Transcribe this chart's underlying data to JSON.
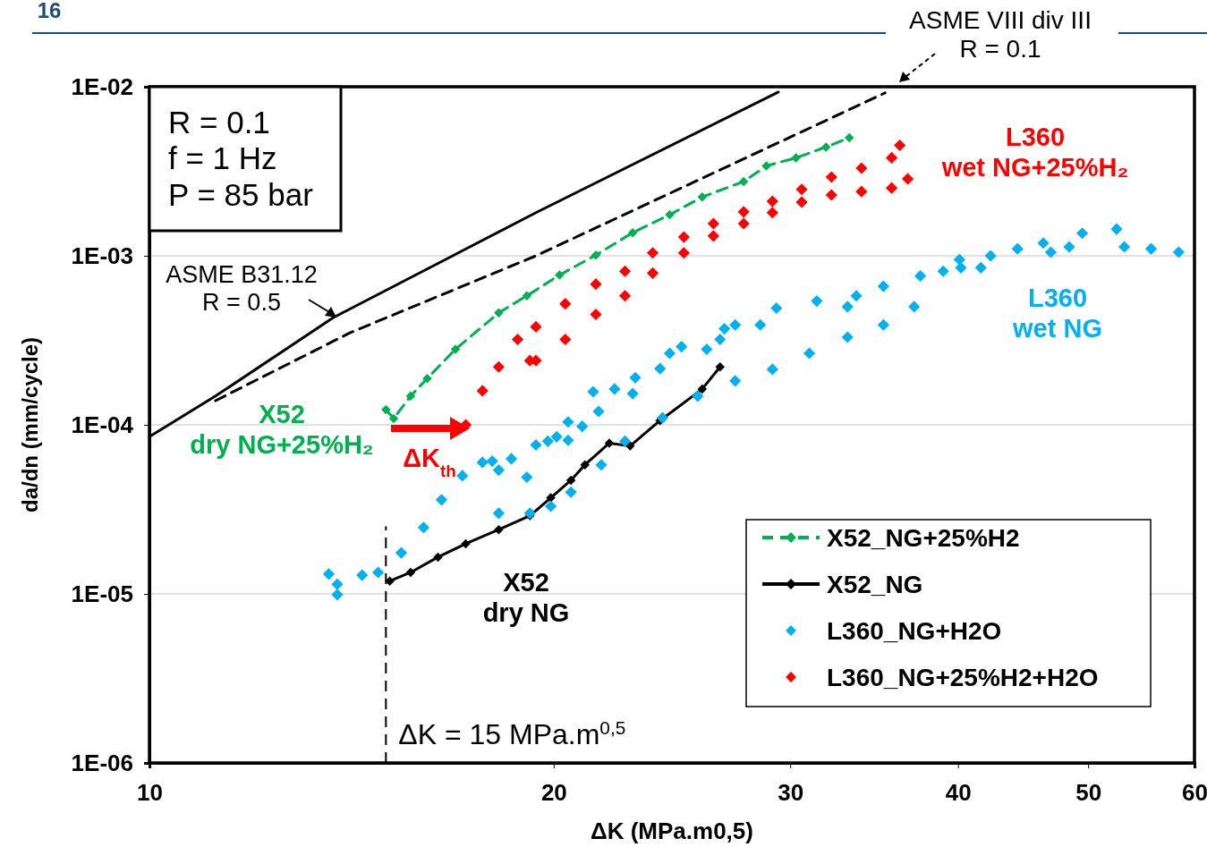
{
  "chart_data": {
    "type": "scatter",
    "xlabel": "ΔK (MPa.m0,5)",
    "ylabel": "da/dn (mm/cycle)",
    "log": "xy",
    "xlim": [
      10,
      60
    ],
    "ylim": [
      1e-06,
      0.01
    ],
    "xticks": [
      10,
      20,
      30,
      40,
      50,
      60
    ],
    "yticks": [
      {
        "value": 1e-06,
        "label": "1E-06"
      },
      {
        "value": 1e-05,
        "label": "1E-05"
      },
      {
        "value": 0.0001,
        "label": "1E-04"
      },
      {
        "value": 0.001,
        "label": "1E-03"
      },
      {
        "value": 0.01,
        "label": "1E-02"
      }
    ],
    "grid": "y",
    "legend": "bottom right",
    "marker": "diamond",
    "series": [
      {
        "type": "line",
        "color": "#000000",
        "marker": "none",
        "line_style": "solid",
        "x": [
          10,
          11.2,
          13.7,
          19.4,
          29.4
        ],
        "values": [
          8.5e-05,
          0.000148,
          0.00043,
          0.0018,
          0.0093
        ]
      },
      {
        "type": "line",
        "color": "#000000",
        "marker": "none",
        "line_style": "dashed",
        "x": [
          11.2,
          14.1,
          19.4,
          35.3
        ],
        "values": [
          0.000139,
          0.00035,
          0.001,
          0.0092
        ]
      },
      {
        "name": "X52_NG+25%H2",
        "type": "line",
        "color": "#00b050",
        "line_style": "dashed",
        "x": [
          15.0,
          15.2,
          15.65,
          16.1,
          16.9,
          18.2,
          19.1,
          20.2,
          21.5,
          22.9,
          24.4,
          25.8,
          27.7,
          28.8,
          30.3,
          31.9,
          33.2
        ],
        "values": [
          0.000123,
          0.000109,
          0.000148,
          0.000188,
          0.00028,
          0.00046,
          0.00058,
          0.00077,
          0.00101,
          0.00137,
          0.00175,
          0.00223,
          0.00275,
          0.0034,
          0.0038,
          0.0044,
          0.005
        ]
      },
      {
        "name": "X52_NG",
        "type": "line",
        "color": "#000000",
        "line_style": "solid",
        "x": [
          15.1,
          15.65,
          16.4,
          17.2,
          18.2,
          19.2,
          19.9,
          20.6,
          21.1,
          22.0,
          22.8,
          24.0,
          25.8,
          26.6
        ],
        "values": [
          1.19e-05,
          1.34e-05,
          1.65e-05,
          1.98e-05,
          2.4e-05,
          2.9e-05,
          3.7e-05,
          4.7e-05,
          5.8e-05,
          7.8e-05,
          7.5e-05,
          0.000106,
          0.000163,
          0.00022
        ]
      },
      {
        "name": "L360_NG+H2O",
        "type": "scatter",
        "color": "#00b0f0",
        "x": [
          13.6,
          13.8,
          13.8,
          14.4,
          14.8,
          15.4,
          16.0,
          16.5,
          17.1,
          17.7,
          18.0,
          18.2,
          18.6,
          19.1,
          19.4,
          19.8,
          20.1,
          20.5,
          20.5,
          21.0,
          21.4,
          21.6,
          22.2,
          22.9,
          23.0,
          24.0,
          24.4,
          24.9,
          26.0,
          26.6,
          26.8,
          27.3,
          28.5,
          29.3,
          31.4,
          33.1,
          33.6,
          35.2,
          37.5,
          39.0,
          40.1,
          40.2,
          41.6,
          42.3,
          44.3,
          46.3,
          46.9,
          48.4,
          49.5,
          52.5,
          53.2,
          55.7,
          58.4,
          18.2,
          19.2,
          19.9,
          20.6,
          21.7,
          22.6,
          24.1,
          25.6,
          27.3,
          29.1,
          31.0,
          33.1,
          35.2,
          37.1
        ],
        "values": [
          1.31e-05,
          1.14e-05,
          9.9e-06,
          1.29e-05,
          1.34e-05,
          1.75e-05,
          2.47e-05,
          3.6e-05,
          5e-05,
          6e-05,
          6.1e-05,
          5.4e-05,
          6.3e-05,
          4.9e-05,
          7.6e-05,
          8e-05,
          8.5e-05,
          8.1e-05,
          0.000104,
          9.8e-05,
          0.000157,
          0.00012,
          0.000163,
          0.000153,
          0.00019,
          0.000215,
          0.000265,
          0.00029,
          0.00028,
          0.00032,
          0.00037,
          0.00039,
          0.00039,
          0.00049,
          0.00054,
          0.0005,
          0.00058,
          0.00066,
          0.00076,
          0.00081,
          0.00095,
          0.00085,
          0.00085,
          0.001,
          0.0011,
          0.00119,
          0.00105,
          0.00113,
          0.00136,
          0.00144,
          0.00113,
          0.0011,
          0.00105,
          3e-05,
          3e-05,
          3.3e-05,
          4e-05,
          5.8e-05,
          8e-05,
          0.00011,
          0.000148,
          0.000182,
          0.000213,
          0.000265,
          0.00033,
          0.00039,
          0.0005
        ]
      },
      {
        "name": "L360_NG+25%H2+H2O",
        "type": "scatter",
        "color": "#ff0000",
        "x": [
          17.2,
          17.7,
          18.2,
          18.8,
          19.4,
          20.4,
          21.5,
          22.6,
          23.7,
          25.0,
          26.3,
          27.7,
          29.1,
          30.6,
          32.2,
          33.9,
          35.7,
          36.2,
          19.2,
          19.4,
          20.4,
          21.5,
          22.6,
          23.7,
          25.0,
          26.3,
          27.7,
          29.1,
          30.6,
          32.2,
          33.9,
          35.7,
          36.7
        ],
        "values": [
          0.0001,
          0.000159,
          0.00022,
          0.00032,
          0.00038,
          0.00052,
          0.00068,
          0.00081,
          0.00104,
          0.00129,
          0.00155,
          0.00182,
          0.0021,
          0.00247,
          0.00292,
          0.0033,
          0.0038,
          0.0045,
          0.00024,
          0.00024,
          0.00032,
          0.00045,
          0.00058,
          0.00079,
          0.00104,
          0.00131,
          0.00155,
          0.0018,
          0.00208,
          0.00229,
          0.0024,
          0.00252,
          0.00285
        ]
      }
    ],
    "ref_lines": [
      {
        "axis": "x",
        "value": 15,
        "label": "ΔK = 15 MPa.m$^{0,5}$",
        "line_style": "dashed",
        "color": "#000000"
      }
    ],
    "annotations": [
      "16",
      "R = 0.1\nf = 1 Hz\nP = 85 bar",
      "ASME VIII div III\nR = 0.1",
      "ASME B31.12\nR = 0.5",
      "X52\ndry NG+25%H₂",
      "ΔK$_{th}$",
      "X52\ndry NG",
      "L360\nwet NG",
      "L360\nwet NG+25%H₂"
    ]
  }
}
